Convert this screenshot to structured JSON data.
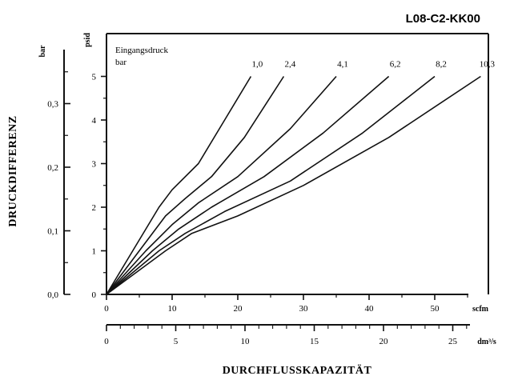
{
  "chart_data": {
    "type": "line",
    "title": "L08-C2-KK00",
    "legend_title": [
      "Eingangsdruck",
      "bar"
    ],
    "xlabel": "DURCHFLUSSKAPAZITÄT",
    "ylabel": "DRUCKDIFFERENZ",
    "x_primary": {
      "unit": "scfm",
      "range": [
        0,
        57
      ],
      "ticks": [
        0,
        10,
        20,
        30,
        40,
        50
      ],
      "tick_labels": [
        "0",
        "10",
        "20",
        "30",
        "40",
        "50"
      ]
    },
    "x_secondary": {
      "unit": "dm³/s",
      "range": [
        0,
        27
      ],
      "ticks": [
        0,
        5,
        10,
        15,
        20,
        25
      ],
      "tick_labels": [
        "0",
        "5",
        "10",
        "15",
        "20",
        "25"
      ]
    },
    "y_primary": {
      "unit": "psid",
      "range": [
        0,
        5.5
      ],
      "ticks": [
        0,
        1,
        2,
        3,
        4,
        5
      ],
      "tick_labels": [
        "0",
        "1",
        "2",
        "3",
        "4",
        "5"
      ]
    },
    "y_secondary": {
      "unit": "bar",
      "range": [
        0,
        0.38
      ],
      "ticks": [
        0,
        0.1,
        0.2,
        0.3
      ],
      "tick_labels": [
        "0,0",
        "0,1",
        "0,2",
        "0,3"
      ]
    },
    "series": [
      {
        "name": "1,0",
        "x": [
          0,
          4,
          8,
          10,
          14,
          18,
          22
        ],
        "y": [
          0,
          1.0,
          2.0,
          2.4,
          3.0,
          4.0,
          5.0
        ]
      },
      {
        "name": "2,4",
        "x": [
          0,
          5,
          9,
          12,
          16,
          21,
          27
        ],
        "y": [
          0,
          1.0,
          1.8,
          2.2,
          2.7,
          3.6,
          5.0
        ]
      },
      {
        "name": "4,1",
        "x": [
          0,
          6,
          10,
          14,
          20,
          28,
          35
        ],
        "y": [
          0,
          1.0,
          1.6,
          2.1,
          2.7,
          3.8,
          5.0
        ]
      },
      {
        "name": "6,2",
        "x": [
          0,
          7,
          11,
          16,
          24,
          33,
          43
        ],
        "y": [
          0,
          1.0,
          1.5,
          2.0,
          2.7,
          3.7,
          5.0
        ]
      },
      {
        "name": "8,2",
        "x": [
          0,
          8,
          12,
          18,
          28,
          39,
          50
        ],
        "y": [
          0,
          1.0,
          1.4,
          1.9,
          2.6,
          3.7,
          5.0
        ]
      },
      {
        "name": "10,3",
        "x": [
          0,
          9,
          13,
          20,
          30,
          43,
          57
        ],
        "y": [
          0,
          1.0,
          1.4,
          1.8,
          2.5,
          3.6,
          5.0
        ]
      }
    ],
    "grid": false
  }
}
